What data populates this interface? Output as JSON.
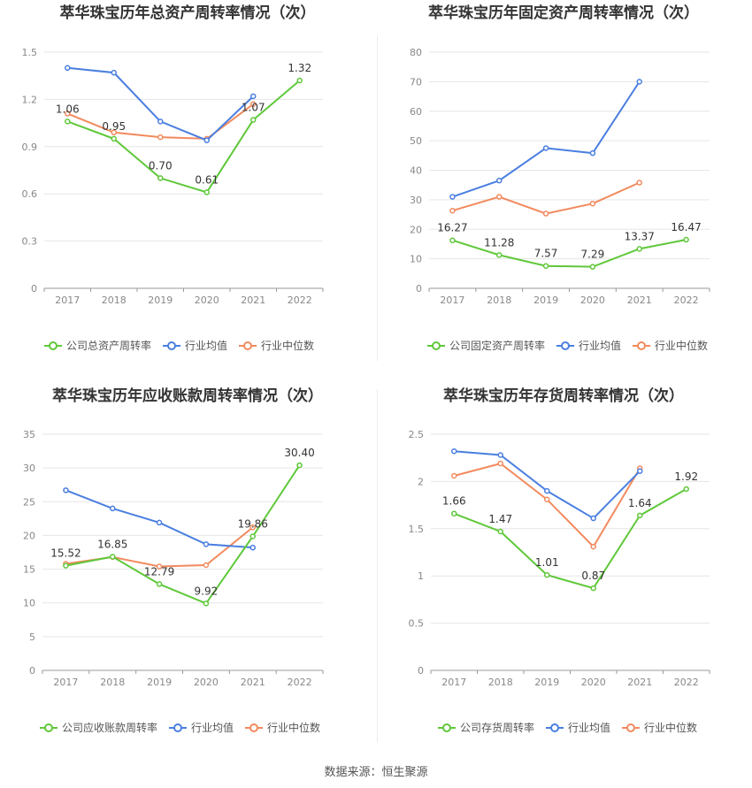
{
  "source": "数据来源：恒生聚源",
  "colors": {
    "company": "#5fc83a",
    "industry_avg": "#4a7fe0",
    "industry_median": "#f28a5e"
  },
  "chart_data": [
    {
      "type": "line",
      "title": "萃华珠宝历年总资产周转率情况（次）",
      "categories": [
        "2017",
        "2018",
        "2019",
        "2020",
        "2021",
        "2022"
      ],
      "ylim": [
        0,
        1.5
      ],
      "yticks": [
        "0",
        "0.3",
        "0.6",
        "0.9",
        "1.2",
        "1.5"
      ],
      "grid": true,
      "legend": "bottom",
      "series": [
        {
          "name": "公司总资产周转率",
          "role": "company",
          "values": [
            1.06,
            0.95,
            0.7,
            0.61,
            1.07,
            1.32
          ],
          "labels": [
            "1.06",
            "0.95",
            "0.70",
            "0.61",
            "1.07",
            "1.32"
          ]
        },
        {
          "name": "行业均值",
          "role": "industry_avg",
          "values": [
            1.4,
            1.37,
            1.06,
            0.94,
            1.22,
            null
          ]
        },
        {
          "name": "行业中位数",
          "role": "industry_median",
          "values": [
            1.11,
            0.99,
            0.96,
            0.95,
            1.17,
            null
          ]
        }
      ]
    },
    {
      "type": "line",
      "title": "萃华珠宝历年固定资产周转率情况（次）",
      "categories": [
        "2017",
        "2018",
        "2019",
        "2020",
        "2021",
        "2022"
      ],
      "ylim": [
        0,
        80
      ],
      "yticks": [
        "0",
        "10",
        "20",
        "30",
        "40",
        "50",
        "60",
        "70",
        "80"
      ],
      "grid": true,
      "legend": "bottom",
      "series": [
        {
          "name": "公司固定资产周转率",
          "role": "company",
          "values": [
            16.27,
            11.28,
            7.57,
            7.29,
            13.37,
            16.47
          ],
          "labels": [
            "16.27",
            "11.28",
            "7.57",
            "7.29",
            "13.37",
            "16.47"
          ]
        },
        {
          "name": "行业均值",
          "role": "industry_avg",
          "values": [
            31.0,
            36.5,
            47.5,
            45.8,
            70.0,
            null
          ]
        },
        {
          "name": "行业中位数",
          "role": "industry_median",
          "values": [
            26.3,
            31.0,
            25.3,
            28.7,
            35.8,
            null
          ]
        }
      ]
    },
    {
      "type": "line",
      "title": "萃华珠宝历年应收账款周转率情况（次）",
      "categories": [
        "2017",
        "2018",
        "2019",
        "2020",
        "2021",
        "2022"
      ],
      "ylim": [
        0,
        35
      ],
      "yticks": [
        "0",
        "5",
        "10",
        "15",
        "20",
        "25",
        "30",
        "35"
      ],
      "grid": true,
      "legend": "bottom",
      "series": [
        {
          "name": "公司应收账款周转率",
          "role": "company",
          "values": [
            15.52,
            16.85,
            12.79,
            9.92,
            19.86,
            30.4
          ],
          "labels": [
            "15.52",
            "16.85",
            "12.79",
            "9.92",
            "19.86",
            "30.40"
          ]
        },
        {
          "name": "行业均值",
          "role": "industry_avg",
          "values": [
            26.7,
            24.0,
            21.9,
            18.7,
            18.2,
            null
          ]
        },
        {
          "name": "行业中位数",
          "role": "industry_median",
          "values": [
            15.8,
            16.8,
            15.4,
            15.6,
            21.2,
            null
          ]
        }
      ]
    },
    {
      "type": "line",
      "title": "萃华珠宝历年存货周转率情况（次）",
      "categories": [
        "2017",
        "2018",
        "2019",
        "2020",
        "2021",
        "2022"
      ],
      "ylim": [
        0,
        2.5
      ],
      "yticks": [
        "0",
        "0.5",
        "1",
        "1.5",
        "2",
        "2.5"
      ],
      "grid": true,
      "legend": "bottom",
      "series": [
        {
          "name": "公司存货周转率",
          "role": "company",
          "values": [
            1.66,
            1.47,
            1.01,
            0.87,
            1.64,
            1.92
          ],
          "labels": [
            "1.66",
            "1.47",
            "1.01",
            "0.87",
            "1.64",
            "1.92"
          ]
        },
        {
          "name": "行业均值",
          "role": "industry_avg",
          "values": [
            2.32,
            2.28,
            1.9,
            1.61,
            2.11,
            null
          ]
        },
        {
          "name": "行业中位数",
          "role": "industry_median",
          "values": [
            2.06,
            2.19,
            1.81,
            1.31,
            2.14,
            null
          ]
        }
      ]
    }
  ]
}
